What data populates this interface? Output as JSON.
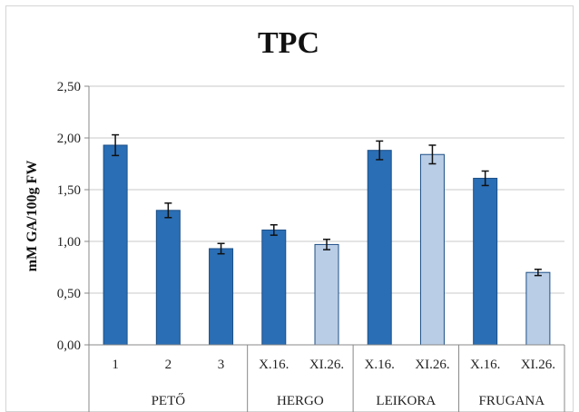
{
  "chart_data": {
    "type": "bar",
    "title": "TPC",
    "ylabel": "mM GA/100g FW",
    "xlabel": "",
    "ylim": [
      0,
      2.5
    ],
    "ytick_labels": [
      "0,00",
      "0,50",
      "1,00",
      "1,50",
      "2,00",
      "2,50"
    ],
    "grid": "horizontal",
    "categories": [
      "1",
      "2",
      "3",
      "X.16.",
      "XI.26.",
      "X.16.",
      "XI.26.",
      "X.16.",
      "XI.26."
    ],
    "groups": [
      {
        "label": "PETŐ",
        "size": 3
      },
      {
        "label": "HERGO",
        "size": 2
      },
      {
        "label": "LEIKORA",
        "size": 2
      },
      {
        "label": "FRUGANA",
        "size": 2
      }
    ],
    "values": [
      1.93,
      1.3,
      0.93,
      1.11,
      0.97,
      1.88,
      1.84,
      1.61,
      0.7
    ],
    "errors": [
      0.1,
      0.07,
      0.05,
      0.05,
      0.05,
      0.09,
      0.09,
      0.07,
      0.03
    ],
    "bar_colors": [
      "#2a6eb5",
      "#2a6eb5",
      "#2a6eb5",
      "#2a6eb5",
      "#b9cde6",
      "#2a6eb5",
      "#b9cde6",
      "#2a6eb5",
      "#b9cde6"
    ],
    "colors": {
      "dark": "#2a6eb5",
      "light": "#b9cde6",
      "edge": "#1d4f86",
      "grid": "#c8c8c8"
    }
  }
}
